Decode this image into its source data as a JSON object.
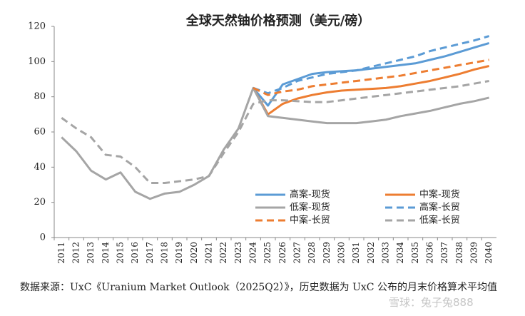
{
  "chart_data": {
    "type": "line",
    "title": "全球天然铀价格预测（美元/磅）",
    "categories": [
      "2011",
      "2012",
      "2013",
      "2014",
      "2015",
      "2016",
      "2017",
      "2018",
      "2019",
      "2020",
      "2021",
      "2022",
      "2023",
      "2024",
      "2025",
      "2026",
      "2027",
      "2028",
      "2029",
      "2030",
      "2031",
      "2032",
      "2033",
      "2034",
      "2035",
      "2036",
      "2037",
      "2038",
      "2039",
      "2040"
    ],
    "ylim": [
      0,
      120
    ],
    "yticks": [
      0,
      20,
      40,
      60,
      80,
      100,
      120
    ],
    "series": [
      {
        "name": "高案-现货",
        "color": "#5b9bd5",
        "dash": false,
        "values": [
          null,
          null,
          null,
          null,
          null,
          null,
          null,
          null,
          null,
          null,
          null,
          null,
          null,
          85,
          75,
          87,
          90,
          93,
          94,
          94.5,
          95,
          96,
          97,
          98,
          99,
          101,
          103,
          105.5,
          108,
          110.5
        ]
      },
      {
        "name": "中案-现货",
        "color": "#ed7d31",
        "dash": false,
        "values": [
          null,
          null,
          null,
          null,
          null,
          null,
          null,
          null,
          null,
          null,
          null,
          null,
          null,
          85,
          70,
          76,
          79,
          81,
          82.5,
          83.5,
          84,
          84.5,
          85,
          86,
          87.5,
          89,
          91,
          93,
          95.5,
          97.5
        ]
      },
      {
        "name": "低案-现货",
        "color": "#a5a5a5",
        "dash": false,
        "values": [
          57,
          49,
          38,
          33,
          37,
          26,
          22,
          25,
          26,
          30,
          35,
          50,
          62,
          85,
          69,
          68,
          67,
          66,
          65,
          65,
          65,
          66,
          67,
          69,
          70.5,
          72,
          74,
          76,
          77.5,
          79.5
        ]
      },
      {
        "name": "高案-长贸",
        "color": "#5b9bd5",
        "dash": true,
        "values": [
          null,
          null,
          null,
          null,
          null,
          null,
          null,
          null,
          null,
          null,
          null,
          null,
          null,
          85,
          82,
          85,
          89,
          91,
          93,
          94,
          95,
          97,
          99,
          101,
          103,
          106,
          108,
          110,
          112,
          114.5
        ]
      },
      {
        "name": "中案-长贸",
        "color": "#ed7d31",
        "dash": true,
        "values": [
          null,
          null,
          null,
          null,
          null,
          null,
          null,
          null,
          null,
          null,
          null,
          null,
          null,
          85,
          81,
          83,
          84,
          86,
          87,
          88,
          89,
          90,
          91,
          92,
          93.5,
          95,
          96.5,
          98,
          99.5,
          101
        ]
      },
      {
        "name": "低案-长贸",
        "color": "#a5a5a5",
        "dash": true,
        "values": [
          68,
          62,
          57,
          47,
          46,
          40,
          31,
          31,
          32,
          33,
          35,
          48,
          60,
          76,
          78,
          78,
          77.5,
          77,
          77,
          78,
          79,
          80,
          81,
          82,
          83,
          84,
          85,
          86,
          87.5,
          89
        ]
      }
    ],
    "source": "数据来源：UxC《Uranium Market Outlook（2025Q2）》，历史数据为 UxC 公布的月末价格算术平均值",
    "watermark": "雪球：兔子兔888"
  }
}
